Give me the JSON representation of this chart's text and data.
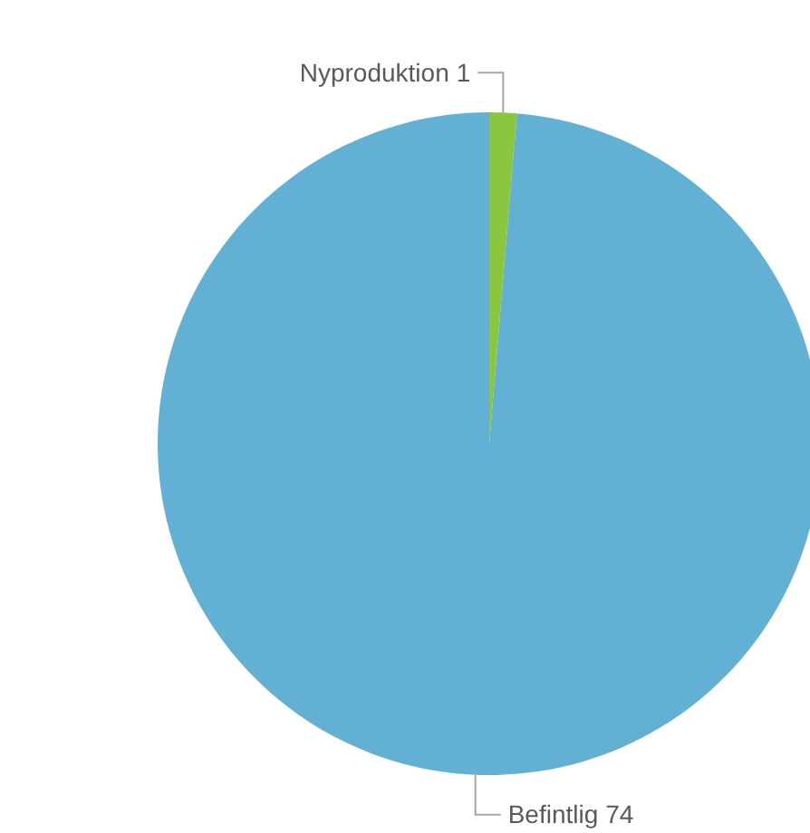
{
  "chart_data": {
    "type": "pie",
    "categories": [
      "Nyproduktion",
      "Befintlig"
    ],
    "values": [
      1,
      74
    ],
    "colors": [
      "#8cc63e",
      "#62b1d4"
    ],
    "data_labels": true,
    "legend": false
  }
}
